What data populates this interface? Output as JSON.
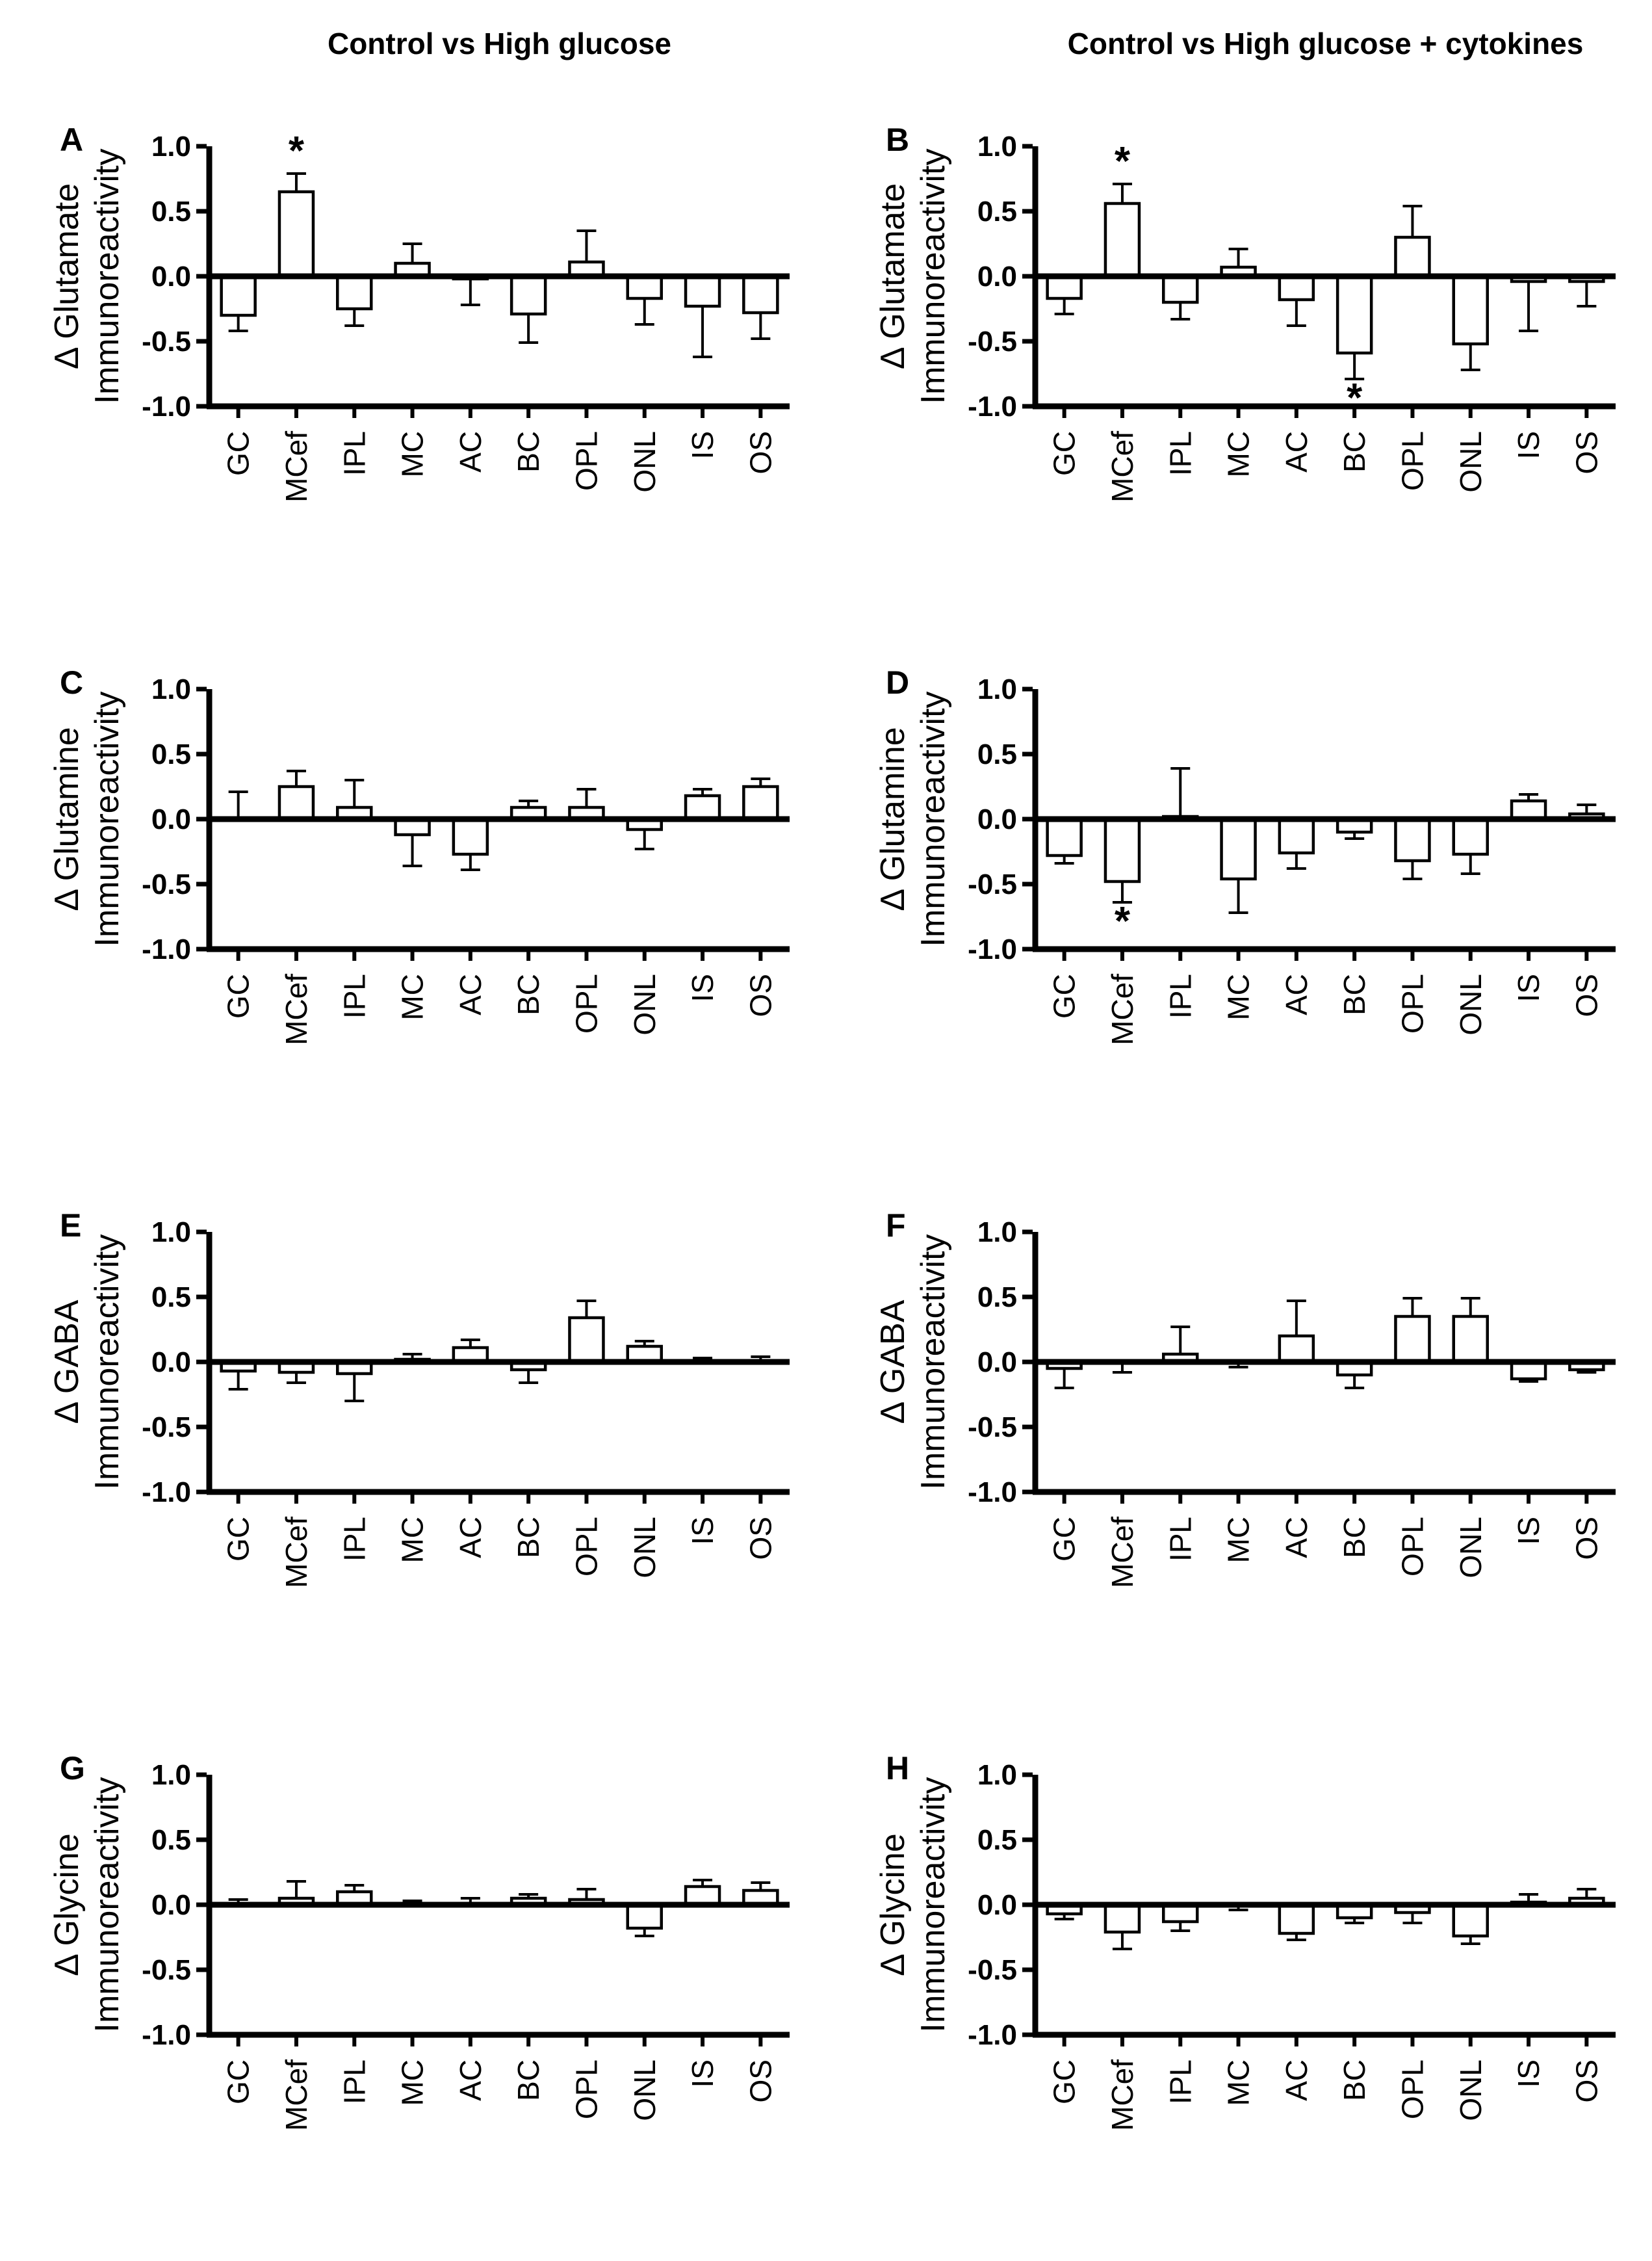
{
  "titles": {
    "left": "Control vs High glucose",
    "right": "Control vs High glucose + cytokines"
  },
  "colors": {
    "foreground": "#000000",
    "background": "#ffffff",
    "bar_fill": "#ffffff",
    "bar_stroke": "#000000"
  },
  "axis": {
    "ylim": [
      -1.0,
      1.0
    ],
    "yticks": [
      1.0,
      0.5,
      0.0,
      -0.5,
      -1.0
    ],
    "ytick_labels": [
      "1.0",
      "0.5",
      "0.0",
      "-0.5",
      "-1.0"
    ]
  },
  "categories": [
    "GC",
    "MCef",
    "IPL",
    "MC",
    "AC",
    "BC",
    "OPL",
    "ONL",
    "IS",
    "OS"
  ],
  "chart_data": [
    {
      "type": "bar",
      "panel": "A",
      "column_title": "Control vs High glucose",
      "ylabel": "Δ Glutamate Immunoreactivity",
      "ylabel_lines": [
        "Δ Glutamate",
        "Immunoreactivity"
      ],
      "categories": [
        "GC",
        "MCef",
        "IPL",
        "MC",
        "AC",
        "BC",
        "OPL",
        "ONL",
        "IS",
        "OS"
      ],
      "values": [
        -0.3,
        0.65,
        -0.25,
        0.1,
        -0.02,
        -0.29,
        0.11,
        -0.17,
        -0.23,
        -0.28
      ],
      "errors": [
        0.12,
        0.14,
        0.13,
        0.15,
        0.2,
        0.22,
        0.24,
        0.2,
        0.39,
        0.2
      ],
      "significance": [
        {
          "category": "MCef",
          "placement": "above",
          "symbol": "*"
        }
      ],
      "ylim": [
        -1.0,
        1.0
      ],
      "yticks": [
        1.0,
        0.5,
        0.0,
        -0.5,
        -1.0
      ],
      "grid": false,
      "legend": "none"
    },
    {
      "type": "bar",
      "panel": "B",
      "column_title": "Control vs High glucose + cytokines",
      "ylabel": "Δ Glutamate Immunoreactivity",
      "ylabel_lines": [
        "Δ Glutamate",
        "Immunoreactivity"
      ],
      "categories": [
        "GC",
        "MCef",
        "IPL",
        "MC",
        "AC",
        "BC",
        "OPL",
        "ONL",
        "IS",
        "OS"
      ],
      "values": [
        -0.17,
        0.56,
        -0.2,
        0.07,
        -0.18,
        -0.59,
        0.3,
        -0.52,
        -0.04,
        -0.04
      ],
      "errors": [
        0.12,
        0.15,
        0.13,
        0.14,
        0.2,
        0.2,
        0.24,
        0.2,
        0.38,
        0.19
      ],
      "significance": [
        {
          "category": "MCef",
          "placement": "above",
          "symbol": "*"
        },
        {
          "category": "BC",
          "placement": "below",
          "symbol": "*"
        }
      ],
      "ylim": [
        -1.0,
        1.0
      ],
      "yticks": [
        1.0,
        0.5,
        0.0,
        -0.5,
        -1.0
      ],
      "grid": false,
      "legend": "none"
    },
    {
      "type": "bar",
      "panel": "C",
      "column_title": "Control vs High glucose",
      "ylabel": "Δ Glutamine Immunoreactivity",
      "ylabel_lines": [
        "Δ Glutamine",
        "Immunoreactivity"
      ],
      "categories": [
        "GC",
        "MCef",
        "IPL",
        "MC",
        "AC",
        "BC",
        "OPL",
        "ONL",
        "IS",
        "OS"
      ],
      "values": [
        0.01,
        0.25,
        0.09,
        -0.12,
        -0.27,
        0.09,
        0.09,
        -0.08,
        0.18,
        0.25
      ],
      "errors": [
        0.2,
        0.12,
        0.21,
        0.24,
        0.12,
        0.05,
        0.14,
        0.15,
        0.05,
        0.06
      ],
      "significance": [],
      "ylim": [
        -1.0,
        1.0
      ],
      "yticks": [
        1.0,
        0.5,
        0.0,
        -0.5,
        -1.0
      ],
      "grid": false,
      "legend": "none"
    },
    {
      "type": "bar",
      "panel": "D",
      "column_title": "Control vs High glucose + cytokines",
      "ylabel": "Δ Glutamine Immunoreactivity",
      "ylabel_lines": [
        "Δ Glutamine",
        "Immunoreactivity"
      ],
      "categories": [
        "GC",
        "MCef",
        "IPL",
        "MC",
        "AC",
        "BC",
        "OPL",
        "ONL",
        "IS",
        "OS"
      ],
      "values": [
        -0.28,
        -0.48,
        0.02,
        -0.46,
        -0.26,
        -0.1,
        -0.32,
        -0.27,
        0.14,
        0.04
      ],
      "errors": [
        0.06,
        0.16,
        0.37,
        0.26,
        0.12,
        0.05,
        0.14,
        0.15,
        0.05,
        0.07
      ],
      "significance": [
        {
          "category": "MCef",
          "placement": "below",
          "symbol": "*"
        }
      ],
      "ylim": [
        -1.0,
        1.0
      ],
      "yticks": [
        1.0,
        0.5,
        0.0,
        -0.5,
        -1.0
      ],
      "grid": false,
      "legend": "none"
    },
    {
      "type": "bar",
      "panel": "E",
      "column_title": "Control vs High glucose",
      "ylabel": "Δ GABA Immunoreactivity",
      "ylabel_lines": [
        "Δ GABA",
        "Immunoreactivity"
      ],
      "categories": [
        "GC",
        "MCef",
        "IPL",
        "MC",
        "AC",
        "BC",
        "OPL",
        "ONL",
        "IS",
        "OS"
      ],
      "values": [
        -0.07,
        -0.08,
        -0.09,
        0.02,
        0.11,
        -0.06,
        0.34,
        0.12,
        0.01,
        0.01
      ],
      "errors": [
        0.14,
        0.08,
        0.21,
        0.04,
        0.06,
        0.1,
        0.13,
        0.04,
        0.02,
        0.03
      ],
      "significance": [],
      "ylim": [
        -1.0,
        1.0
      ],
      "yticks": [
        1.0,
        0.5,
        0.0,
        -0.5,
        -1.0
      ],
      "grid": false,
      "legend": "none"
    },
    {
      "type": "bar",
      "panel": "F",
      "column_title": "Control vs High glucose + cytokines",
      "ylabel": "Δ GABA Immunoreactivity",
      "ylabel_lines": [
        "Δ GABA",
        "Immunoreactivity"
      ],
      "categories": [
        "GC",
        "MCef",
        "IPL",
        "MC",
        "AC",
        "BC",
        "OPL",
        "ONL",
        "IS",
        "OS"
      ],
      "values": [
        -0.05,
        -0.01,
        0.06,
        -0.01,
        0.2,
        -0.1,
        0.35,
        0.35,
        -0.13,
        -0.06
      ],
      "errors": [
        0.15,
        0.07,
        0.21,
        0.03,
        0.27,
        0.1,
        0.14,
        0.14,
        0.02,
        0.02
      ],
      "significance": [],
      "ylim": [
        -1.0,
        1.0
      ],
      "yticks": [
        1.0,
        0.5,
        0.0,
        -0.5,
        -1.0
      ],
      "grid": false,
      "legend": "none"
    },
    {
      "type": "bar",
      "panel": "G",
      "column_title": "Control vs High glucose",
      "ylabel": "Δ Glycine Immunoreactivity",
      "ylabel_lines": [
        "Δ Glycine",
        "Immunoreactivity"
      ],
      "categories": [
        "GC",
        "MCef",
        "IPL",
        "MC",
        "AC",
        "BC",
        "OPL",
        "ONL",
        "IS",
        "OS"
      ],
      "values": [
        0.01,
        0.05,
        0.1,
        0.0,
        0.01,
        0.05,
        0.04,
        -0.18,
        0.14,
        0.11
      ],
      "errors": [
        0.03,
        0.13,
        0.05,
        0.03,
        0.04,
        0.03,
        0.08,
        0.06,
        0.05,
        0.06
      ],
      "significance": [],
      "ylim": [
        -1.0,
        1.0
      ],
      "yticks": [
        1.0,
        0.5,
        0.0,
        -0.5,
        -1.0
      ],
      "grid": false,
      "legend": "none"
    },
    {
      "type": "bar",
      "panel": "H",
      "column_title": "Control vs High glucose + cytokines",
      "ylabel": "Δ Glycine Immunoreactivity",
      "ylabel_lines": [
        "Δ Glycine",
        "Immunoreactivity"
      ],
      "categories": [
        "GC",
        "MCef",
        "IPL",
        "MC",
        "AC",
        "BC",
        "OPL",
        "ONL",
        "IS",
        "OS"
      ],
      "values": [
        -0.07,
        -0.21,
        -0.13,
        -0.01,
        -0.22,
        -0.1,
        -0.06,
        -0.24,
        0.02,
        0.05
      ],
      "errors": [
        0.04,
        0.13,
        0.07,
        0.03,
        0.05,
        0.04,
        0.08,
        0.06,
        0.06,
        0.07
      ],
      "significance": [],
      "ylim": [
        -1.0,
        1.0
      ],
      "yticks": [
        1.0,
        0.5,
        0.0,
        -0.5,
        -1.0
      ],
      "grid": false,
      "legend": "none"
    }
  ]
}
